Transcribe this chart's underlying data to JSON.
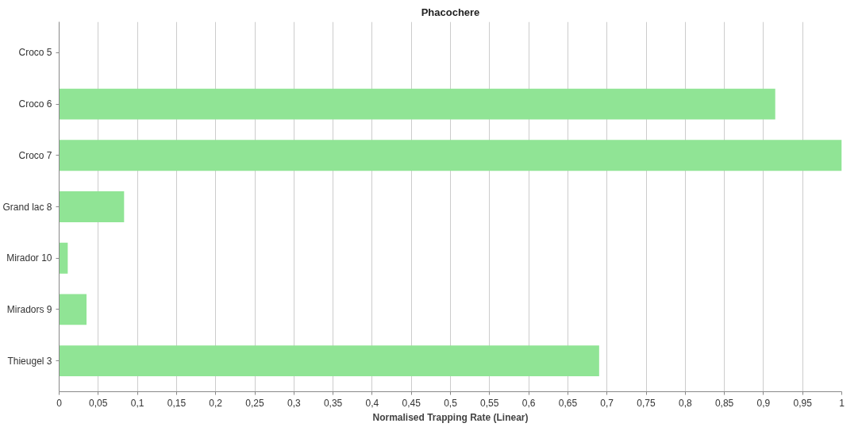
{
  "chart_data": {
    "type": "bar",
    "orientation": "horizontal",
    "title": "Phacochere",
    "xlabel": "Normalised Trapping Rate (Linear)",
    "categories": [
      "Croco 5",
      "Croco 6",
      "Croco 7",
      "Grand lac 8",
      "Mirador 10",
      "Miradors 9",
      "Thieugel 3"
    ],
    "values": [
      0,
      0.915,
      1.0,
      0.083,
      0.011,
      0.035,
      0.69
    ],
    "color": "#90e495",
    "xlim": [
      0,
      1
    ],
    "xticks": [
      0,
      {
        "value": 0.05,
        "label": "0,05"
      },
      {
        "value": 0.1,
        "label": "0,1"
      },
      {
        "value": 0.15,
        "label": "0,15"
      },
      {
        "value": 0.2,
        "label": "0,2"
      },
      {
        "value": 0.25,
        "label": "0,25"
      },
      {
        "value": 0.3,
        "label": "0,3"
      },
      {
        "value": 0.35,
        "label": "0,35"
      },
      {
        "value": 0.4,
        "label": "0,4"
      },
      {
        "value": 0.45,
        "label": "0,45"
      },
      {
        "value": 0.5,
        "label": "0,5"
      },
      {
        "value": 0.55,
        "label": "0,55"
      },
      {
        "value": 0.6,
        "label": "0,6"
      },
      {
        "value": 0.65,
        "label": "0,65"
      },
      {
        "value": 0.7,
        "label": "0,7"
      },
      {
        "value": 0.75,
        "label": "0,75"
      },
      {
        "value": 0.8,
        "label": "0,8"
      },
      {
        "value": 0.85,
        "label": "0,85"
      },
      {
        "value": 0.9,
        "label": "0,9"
      },
      {
        "value": 0.95,
        "label": "0,95"
      },
      1
    ],
    "grid": "x"
  }
}
